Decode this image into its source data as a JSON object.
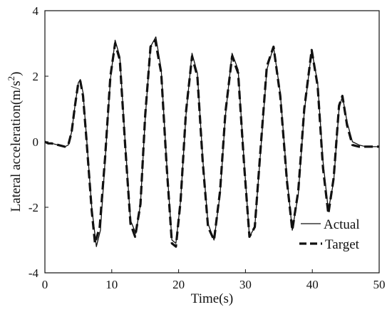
{
  "chart_data": {
    "type": "line",
    "xlabel": "Time(s)",
    "ylabel_main": "Lateral  acceleration(m/s",
    "ylabel_sup": "2",
    "ylabel_close": ")",
    "xlim": [
      0,
      50
    ],
    "ylim": [
      -4,
      4
    ],
    "xticks": [
      0,
      10,
      20,
      30,
      40,
      50
    ],
    "yticks": [
      -4,
      -2,
      0,
      2,
      4
    ],
    "grid": false,
    "legend_position": "bottom-right",
    "series": [
      {
        "name": "Actual",
        "style": "solid",
        "color": "#111111",
        "x": [
          0,
          0.5,
          1,
          2,
          3,
          3.5,
          4,
          4.5,
          5.0,
          5.3,
          5.7,
          6.2,
          7.0,
          7.7,
          8.3,
          9.0,
          9.8,
          10.5,
          11.2,
          12.0,
          12.8,
          13.6,
          14.3,
          15.0,
          15.8,
          16.6,
          17.4,
          18.2,
          19.0,
          19.6,
          20.3,
          21.1,
          22.0,
          22.8,
          23.6,
          24.4,
          25.3,
          26.2,
          27.0,
          28.0,
          28.9,
          29.8,
          30.6,
          31.4,
          32.3,
          33.2,
          34.2,
          35.2,
          36.2,
          37.0,
          37.9,
          38.8,
          39.9,
          40.8,
          41.6,
          42.4,
          43.2,
          44.0,
          44.5,
          45.2,
          46.0,
          47.0,
          48.0,
          49.0,
          50.0
        ],
        "values": [
          0.0,
          -0.05,
          -0.05,
          -0.1,
          -0.15,
          -0.1,
          0.3,
          1.1,
          1.8,
          1.9,
          1.5,
          0.2,
          -2.0,
          -3.2,
          -2.7,
          -0.6,
          1.9,
          3.1,
          2.6,
          0.0,
          -2.4,
          -2.8,
          -1.9,
          0.7,
          2.9,
          3.2,
          2.2,
          -0.6,
          -3.0,
          -3.1,
          -1.8,
          0.8,
          2.7,
          2.1,
          -0.5,
          -2.5,
          -3.0,
          -1.6,
          0.8,
          2.7,
          2.2,
          -0.6,
          -2.9,
          -2.6,
          -0.2,
          2.2,
          2.9,
          1.5,
          -1.1,
          -2.7,
          -1.6,
          0.9,
          2.8,
          1.8,
          -0.6,
          -2.1,
          -1.2,
          1.0,
          1.4,
          0.6,
          0.0,
          -0.1,
          -0.15,
          -0.15,
          -0.15
        ]
      },
      {
        "name": "Target",
        "style": "dashed",
        "color": "#111111",
        "x": [
          0,
          0.5,
          1,
          2,
          3,
          3.5,
          4,
          4.5,
          5.0,
          5.3,
          5.7,
          6.2,
          7.0,
          7.5,
          8.2,
          9.0,
          9.8,
          10.5,
          11.2,
          12.0,
          12.8,
          13.5,
          14.3,
          15.0,
          15.8,
          16.5,
          17.4,
          18.2,
          19.0,
          19.6,
          20.3,
          21.1,
          22.0,
          22.8,
          23.6,
          24.4,
          25.3,
          26.2,
          27.0,
          28.0,
          28.9,
          29.8,
          30.6,
          31.4,
          32.3,
          33.2,
          34.2,
          35.2,
          36.2,
          37.0,
          37.9,
          38.8,
          39.9,
          40.8,
          41.6,
          42.4,
          43.2,
          44.0,
          44.5,
          45.2,
          46.0,
          47.0,
          48.0,
          49.0,
          50.0
        ],
        "values": [
          0.0,
          -0.05,
          -0.05,
          -0.1,
          -0.15,
          -0.1,
          0.3,
          1.1,
          1.8,
          1.85,
          1.4,
          0.1,
          -2.1,
          -3.1,
          -2.6,
          -0.5,
          2.0,
          3.0,
          2.5,
          -0.1,
          -2.5,
          -2.9,
          -1.9,
          0.8,
          2.9,
          3.1,
          2.1,
          -0.7,
          -3.1,
          -3.2,
          -1.8,
          0.9,
          2.6,
          2.0,
          -0.6,
          -2.6,
          -3.0,
          -1.5,
          0.9,
          2.6,
          2.1,
          -0.7,
          -2.9,
          -2.6,
          -0.1,
          2.3,
          2.9,
          1.4,
          -1.2,
          -2.7,
          -1.5,
          1.0,
          2.8,
          1.7,
          -0.8,
          -2.2,
          -1.1,
          1.1,
          1.4,
          0.5,
          -0.1,
          -0.15,
          -0.15,
          -0.15,
          -0.15
        ]
      }
    ]
  }
}
